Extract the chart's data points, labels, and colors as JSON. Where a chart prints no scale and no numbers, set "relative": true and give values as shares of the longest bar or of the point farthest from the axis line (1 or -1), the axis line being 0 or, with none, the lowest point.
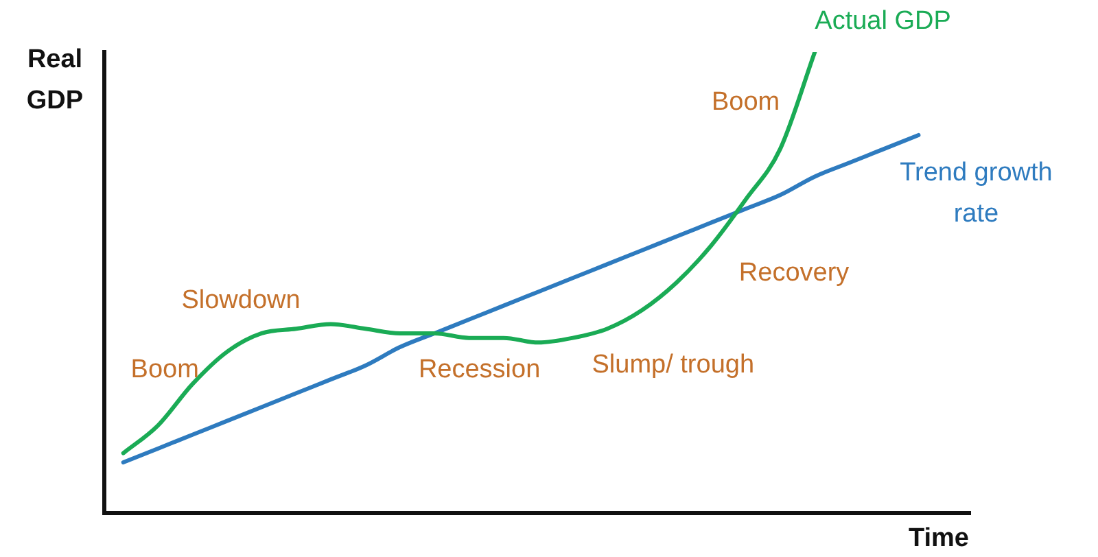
{
  "chart_data": {
    "type": "line",
    "relative": true,
    "xlabel": "Time",
    "ylabel": "Real GDP",
    "marker": "none",
    "legend": false,
    "grid": false,
    "categories": [
      null,
      null,
      null,
      null,
      null,
      null,
      null,
      null,
      null,
      null,
      null,
      null,
      null,
      null,
      null,
      null,
      null,
      null,
      null,
      null,
      null,
      null,
      null,
      null
    ],
    "series": [
      {
        "name": "Actual GDP",
        "color": "#1aab55",
        "values": [
          0.13,
          0.19,
          0.28,
          0.35,
          0.39,
          0.4,
          0.41,
          0.4,
          0.39,
          0.39,
          0.38,
          0.38,
          0.37,
          0.38,
          0.4,
          0.44,
          0.5,
          0.58,
          0.68,
          0.79,
          1,
          null,
          null,
          null
        ]
      },
      {
        "name": "Trend growth rate",
        "color": "#2e7bbf",
        "values": [
          0.11,
          0.14,
          0.17,
          0.2,
          0.23,
          0.26,
          0.29,
          0.32,
          0.36,
          0.39,
          0.42,
          0.45,
          0.48,
          0.51,
          0.54,
          0.57,
          0.6,
          0.63,
          0.66,
          0.69,
          0.73,
          0.76,
          0.79,
          0.82
        ]
      }
    ],
    "annotations": [
      "Boom",
      "Slowdown",
      "Recession",
      "Slump/ trough",
      "Recovery",
      "Boom"
    ]
  }
}
